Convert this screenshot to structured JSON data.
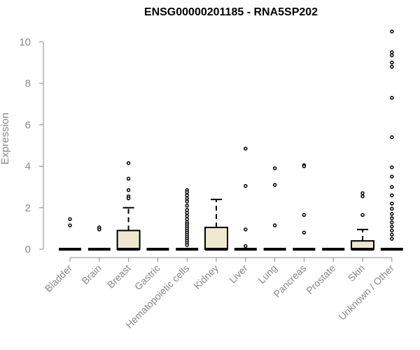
{
  "chart_data": {
    "type": "box",
    "title": "ENSG00000201185 - RNA5SP202",
    "xlabel": "",
    "ylabel": "Expression",
    "ylim": [
      0,
      10.6
    ],
    "yticks": [
      0,
      2,
      4,
      6,
      8,
      10
    ],
    "grid": false,
    "box_fill": "#efe8d0",
    "categories": [
      "Bladder",
      "Brain",
      "Breast",
      "Gastric",
      "Hematopoietic cells",
      "Kidney",
      "Liver",
      "Lung",
      "Pancreas",
      "Prostate",
      "Skin",
      "Unknown / Other"
    ],
    "boxes": [
      {
        "category": "Bladder",
        "q1": 0,
        "median": 0,
        "q3": 0,
        "whisker_high": 0,
        "outliers": [
          1.45,
          1.15
        ]
      },
      {
        "category": "Brain",
        "q1": 0,
        "median": 0,
        "q3": 0,
        "whisker_high": 0,
        "outliers": [
          1.05,
          0.95
        ]
      },
      {
        "category": "Breast",
        "q1": 0,
        "median": 0,
        "q3": 0.9,
        "whisker_high": 2.0,
        "outliers": [
          4.15,
          3.4,
          2.85,
          2.55,
          2.45
        ]
      },
      {
        "category": "Gastric",
        "q1": 0,
        "median": 0,
        "q3": 0,
        "whisker_high": 0,
        "outliers": []
      },
      {
        "category": "Hematopoietic cells",
        "q1": 0,
        "median": 0,
        "q3": 0,
        "whisker_high": 0,
        "outliers": [
          2.85,
          2.75,
          2.6,
          2.45,
          2.3,
          2.1,
          1.9,
          1.75,
          1.6,
          1.45,
          1.3,
          1.2,
          1.1,
          1.0,
          0.9,
          0.8,
          0.7,
          0.6,
          0.5,
          0.4,
          0.3,
          0.2
        ]
      },
      {
        "category": "Kidney",
        "q1": 0,
        "median": 0,
        "q3": 1.05,
        "whisker_high": 2.4,
        "outliers": []
      },
      {
        "category": "Liver",
        "q1": 0,
        "median": 0,
        "q3": 0,
        "whisker_high": 0,
        "outliers": [
          4.85,
          3.05,
          0.95,
          0.15
        ]
      },
      {
        "category": "Lung",
        "q1": 0,
        "median": 0,
        "q3": 0,
        "whisker_high": 0,
        "outliers": [
          3.9,
          3.1,
          1.15
        ]
      },
      {
        "category": "Pancreas",
        "q1": 0,
        "median": 0,
        "q3": 0,
        "whisker_high": 0,
        "outliers": [
          4.05,
          4.0,
          1.65,
          0.8
        ]
      },
      {
        "category": "Prostate",
        "q1": 0,
        "median": 0,
        "q3": 0,
        "whisker_high": 0,
        "outliers": []
      },
      {
        "category": "Skin",
        "q1": 0,
        "median": 0,
        "q3": 0.4,
        "whisker_high": 0.95,
        "outliers": [
          2.7,
          2.55,
          1.65
        ]
      },
      {
        "category": "Unknown / Other",
        "q1": 0,
        "median": 0,
        "q3": 0,
        "whisker_high": 0,
        "outliers": [
          10.5,
          9.5,
          9.35,
          9.0,
          8.8,
          7.3,
          5.4,
          3.95,
          3.5,
          3.0,
          2.6,
          2.2,
          1.95,
          1.7,
          1.5,
          1.3,
          1.1,
          0.9,
          0.7,
          0.5
        ]
      }
    ]
  }
}
